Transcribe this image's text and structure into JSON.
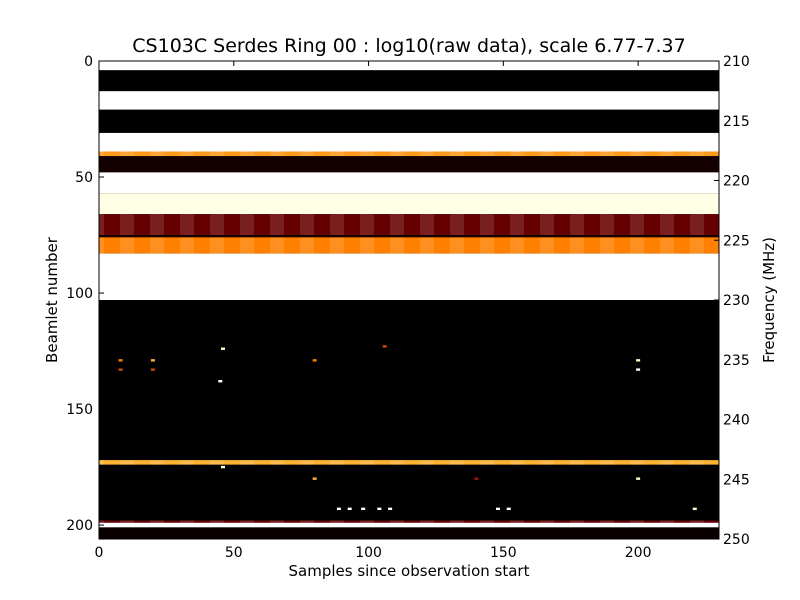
{
  "chart_data": {
    "type": "heatmap",
    "title": "CS103C Serdes Ring 00 : log10(raw data), scale 6.77-7.37",
    "xlabel": "Samples since observation start",
    "ylabel": "Beamlet number",
    "y2label": "Frequency (MHz)",
    "xlim": [
      0,
      230
    ],
    "ylim": [
      206,
      0
    ],
    "y2lim": [
      210,
      250
    ],
    "x_ticks": [
      "0",
      "50",
      "100",
      "150",
      "200"
    ],
    "y_ticks": [
      "0",
      "50",
      "100",
      "150",
      "200"
    ],
    "y2_ticks": [
      "210",
      "215",
      "220",
      "225",
      "230",
      "235",
      "240",
      "245",
      "250"
    ],
    "colormap": "afmhot",
    "color_range": [
      6.77,
      7.37
    ],
    "grid": false,
    "bands": [
      {
        "y0": 0,
        "y1": 4,
        "level": 1.0
      },
      {
        "y0": 4,
        "y1": 13,
        "level": 0.0
      },
      {
        "y0": 13,
        "y1": 21,
        "level": 1.0
      },
      {
        "y0": 21,
        "y1": 31,
        "level": 0.0
      },
      {
        "y0": 31,
        "y1": 39,
        "level": 1.0
      },
      {
        "y0": 39,
        "y1": 41,
        "level": 0.55
      },
      {
        "y0": 41,
        "y1": 48,
        "level": 0.04
      },
      {
        "y0": 48,
        "y1": 57,
        "level": 1.0
      },
      {
        "y0": 57,
        "y1": 66,
        "level": 0.95
      },
      {
        "y0": 66,
        "y1": 75,
        "level": 0.2
      },
      {
        "y0": 75,
        "y1": 76,
        "level": 0.05
      },
      {
        "y0": 76,
        "y1": 83,
        "level": 0.5
      },
      {
        "y0": 83,
        "y1": 103,
        "level": 1.0
      },
      {
        "y0": 103,
        "y1": 172,
        "level": 0.0
      },
      {
        "y0": 172,
        "y1": 174,
        "level": 0.6
      },
      {
        "y0": 174,
        "y1": 198,
        "level": 0.0
      },
      {
        "y0": 198,
        "y1": 199,
        "level": 0.2
      },
      {
        "y0": 199,
        "y1": 201,
        "level": 1.0
      },
      {
        "y0": 201,
        "y1": 206,
        "level": 0.02
      }
    ],
    "spots": [
      {
        "x": 8,
        "y": 129,
        "level": 0.5
      },
      {
        "x": 8,
        "y": 133,
        "level": 0.4
      },
      {
        "x": 20,
        "y": 129,
        "level": 0.6
      },
      {
        "x": 20,
        "y": 133,
        "level": 0.4
      },
      {
        "x": 46,
        "y": 124,
        "level": 0.9
      },
      {
        "x": 45,
        "y": 138,
        "level": 1.0
      },
      {
        "x": 46,
        "y": 175,
        "level": 0.9
      },
      {
        "x": 80,
        "y": 129,
        "level": 0.5
      },
      {
        "x": 80,
        "y": 180,
        "level": 0.6
      },
      {
        "x": 106,
        "y": 123,
        "level": 0.4
      },
      {
        "x": 140,
        "y": 180,
        "level": 0.3
      },
      {
        "x": 200,
        "y": 129,
        "level": 0.9
      },
      {
        "x": 200,
        "y": 133,
        "level": 1.0
      },
      {
        "x": 200,
        "y": 180,
        "level": 0.9
      },
      {
        "x": 89,
        "y": 193,
        "level": 1.0
      },
      {
        "x": 93,
        "y": 193,
        "level": 1.0
      },
      {
        "x": 98,
        "y": 193,
        "level": 1.0
      },
      {
        "x": 104,
        "y": 193,
        "level": 1.0
      },
      {
        "x": 108,
        "y": 193,
        "level": 1.0
      },
      {
        "x": 148,
        "y": 193,
        "level": 1.0
      },
      {
        "x": 152,
        "y": 193,
        "level": 1.0
      },
      {
        "x": 221,
        "y": 193,
        "level": 0.9
      }
    ]
  }
}
